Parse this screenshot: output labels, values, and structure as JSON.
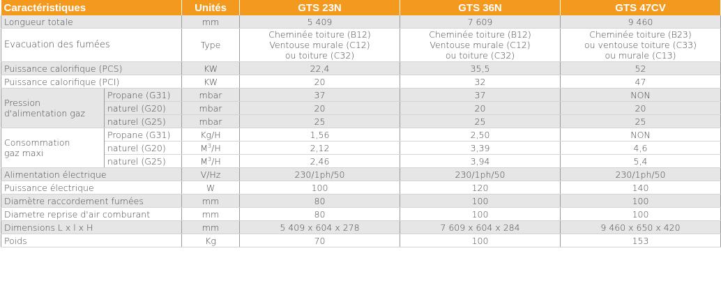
{
  "headers": {
    "characteristics": "Caractéristiques",
    "units": "Unités",
    "models": [
      "GTS 23N",
      "GTS 36N",
      "GTS 47CV"
    ]
  },
  "rows": {
    "length": {
      "label": "Longueur totale",
      "unit": "mm",
      "values": [
        "5 409",
        "7 609",
        "9 460"
      ]
    },
    "evac": {
      "label": "Evacuation des fumées",
      "unit": "Type",
      "values": [
        [
          "Cheminée toiture (B12)",
          "Ventouse murale (C12)",
          "ou toiture (C32)"
        ],
        [
          "Cheminée toiture (B12)",
          "Ventouse murale (C12)",
          "ou toiture (C32)"
        ],
        [
          "Cheminée toiture (B23)",
          "ou ventouse toiture (C33)",
          "ou murale (C13)"
        ]
      ]
    },
    "pcs": {
      "label": "Puissance calorifique (PCS)",
      "unit": "KW",
      "values": [
        "22,4",
        "35,5",
        "52"
      ]
    },
    "pci": {
      "label": "Puissance calorifique (PCI)",
      "unit": "KW",
      "values": [
        "20",
        "32",
        "47"
      ]
    },
    "pressure": {
      "label_line1": "Pression",
      "label_line2": "d'alimentation gaz",
      "sub": [
        {
          "label": "Propane (G31)",
          "unit": "mbar",
          "values": [
            "37",
            "37",
            "NON"
          ]
        },
        {
          "label": "naturel (G20)",
          "unit": "mbar",
          "values": [
            "20",
            "20",
            "20"
          ]
        },
        {
          "label": "naturel (G25)",
          "unit": "mbar",
          "values": [
            "25",
            "25",
            "25"
          ]
        }
      ]
    },
    "consumption": {
      "label_line1": "Consommation",
      "label_line2": "gaz maxi",
      "sub": [
        {
          "label": "Propane (G31)",
          "unit": "Kg/H",
          "values": [
            "1,56",
            "2,50",
            "NON"
          ]
        },
        {
          "label": "naturel (G20)",
          "unit_base": "M",
          "unit_sup": "3",
          "unit_tail": "/H",
          "values": [
            "2,12",
            "3,39",
            "4,6"
          ]
        },
        {
          "label": "naturel (G25)",
          "unit_base": "M",
          "unit_sup": "3",
          "unit_tail": "/H",
          "values": [
            "2,46",
            "3,94",
            "5,4"
          ]
        }
      ]
    },
    "power_supply": {
      "label": "Alimentation électrique",
      "unit": "V/Hz",
      "values": [
        "230/1ph/50",
        "230/1ph/50",
        "230/1ph/50"
      ]
    },
    "power": {
      "label": "Puissance électrique",
      "unit": "W",
      "values": [
        "100",
        "120",
        "140"
      ]
    },
    "flue": {
      "label": "Diamètre raccordement  fumées",
      "unit": "mm",
      "values": [
        "80",
        "100",
        "100"
      ]
    },
    "air": {
      "label": "Diametre reprise d'air comburant",
      "unit": "mm",
      "values": [
        "80",
        "100",
        "100"
      ]
    },
    "dims": {
      "label": "Dimensions L x l x H",
      "unit": "mm",
      "values": [
        "5 409 x 604 x 278",
        "7 609 x 604 x 284",
        "9 460 x 650 x 420"
      ]
    },
    "weight": {
      "label": "Poids",
      "unit": "Kg",
      "values": [
        "70",
        "100",
        "153"
      ]
    }
  }
}
